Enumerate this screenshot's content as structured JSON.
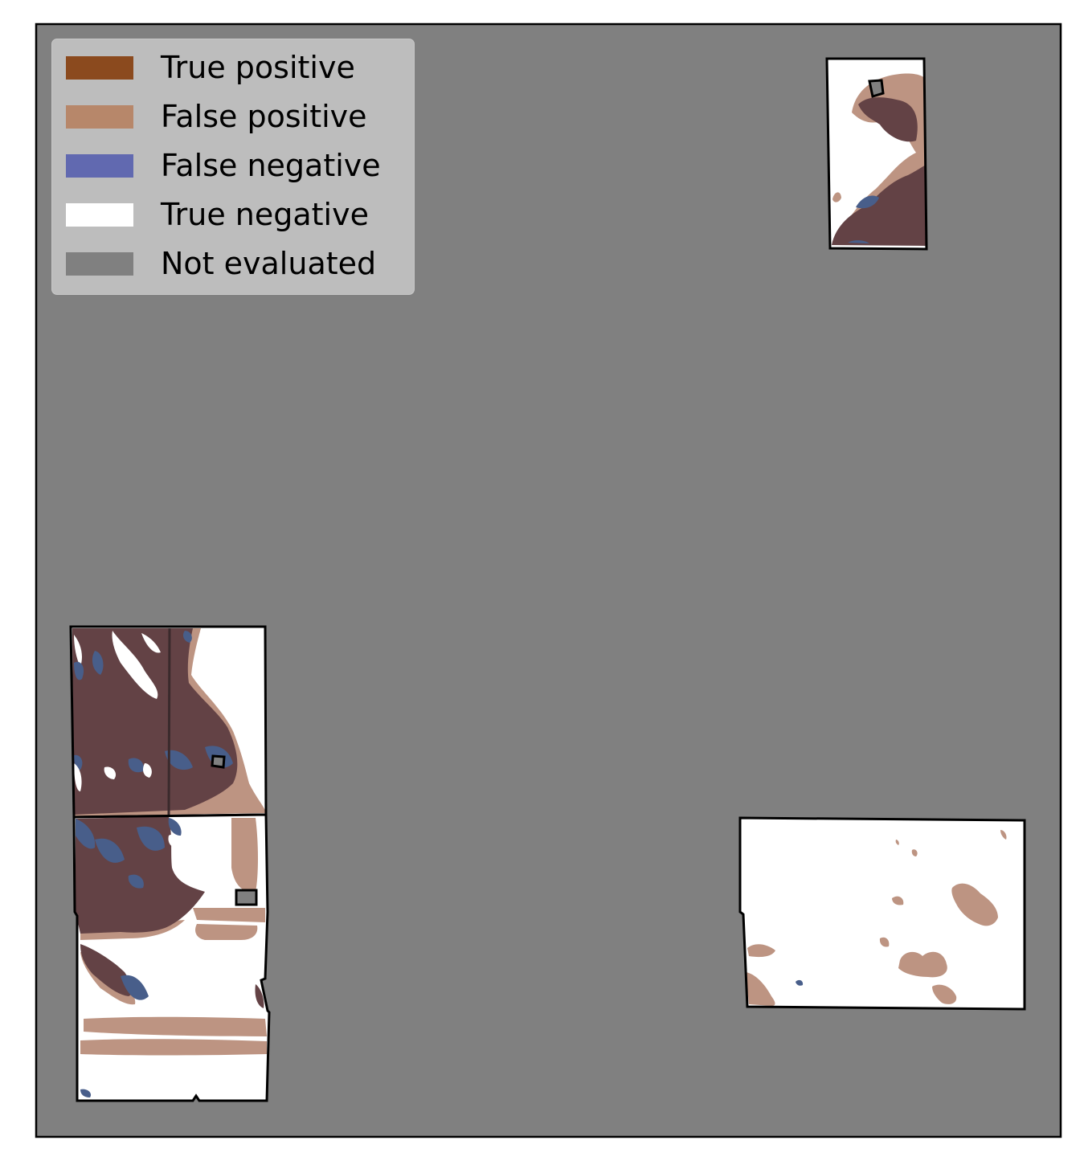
{
  "legend": {
    "placement": "upper-left",
    "items": [
      {
        "label": "True positive",
        "color": "#8b4a1e"
      },
      {
        "label": "False positive",
        "color": "#b7876a"
      },
      {
        "label": "False negative",
        "color": "#6169b0"
      },
      {
        "label": "True negative",
        "color": "#ffffff"
      },
      {
        "label": "Not evaluated",
        "color": "#808080"
      }
    ]
  },
  "colors": {
    "background": "#808080",
    "true_positive_overlay": "#634245",
    "false_positive_overlay": "#bd9482",
    "false_negative_overlay": "#485e8a",
    "boundary": "#000000"
  },
  "axes": {
    "ticks_visible": false,
    "grid": false
  }
}
